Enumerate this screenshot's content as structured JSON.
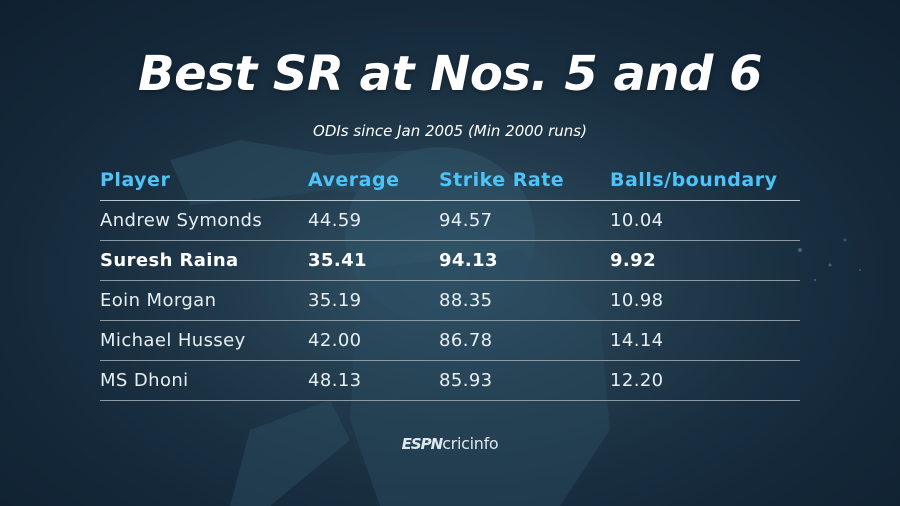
{
  "header": {
    "title": "Best SR at Nos. 5 and 6",
    "subtitle": "ODIs since Jan 2005 (Min 2000 runs)"
  },
  "chart_data": {
    "type": "table",
    "title": "Best SR at Nos. 5 and 6",
    "subtitle": "ODIs since Jan 2005 (Min 2000 runs)",
    "columns": [
      "Player",
      "Average",
      "Strike Rate",
      "Balls/boundary"
    ],
    "rows": [
      {
        "player": "Andrew Symonds",
        "average": "44.59",
        "strike_rate": "94.57",
        "balls_per_boundary": "10.04",
        "highlight": false
      },
      {
        "player": "Suresh Raina",
        "average": "35.41",
        "strike_rate": "94.13",
        "balls_per_boundary": "9.92",
        "highlight": true
      },
      {
        "player": "Eoin Morgan",
        "average": "35.19",
        "strike_rate": "88.35",
        "balls_per_boundary": "10.98",
        "highlight": false
      },
      {
        "player": "Michael Hussey",
        "average": "42.00",
        "strike_rate": "86.78",
        "balls_per_boundary": "14.14",
        "highlight": false
      },
      {
        "player": "MS Dhoni",
        "average": "48.13",
        "strike_rate": "85.93",
        "balls_per_boundary": "12.20",
        "highlight": false
      }
    ]
  },
  "branding": {
    "logo_espn": "ESPN",
    "logo_cricinfo": "cricinfo"
  },
  "colors": {
    "background": "#1f3747",
    "header_text": "#4fc3f7",
    "body_text": "#e6eef2",
    "title_text": "#ffffff"
  }
}
